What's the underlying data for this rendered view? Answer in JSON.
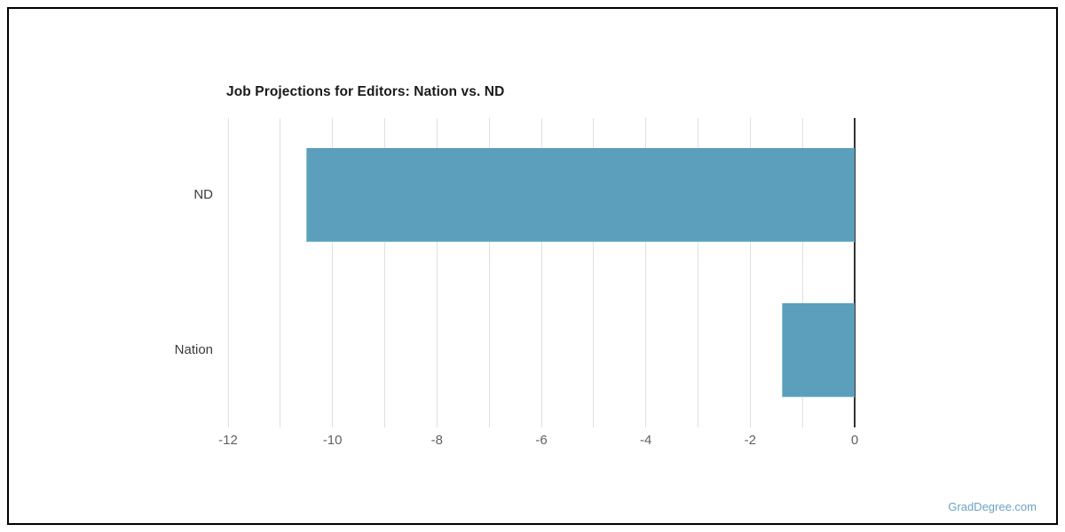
{
  "page": {
    "watermark": "GradDegree.com"
  },
  "colors": {
    "bar": "#5b9fbc",
    "bar_edge": "#8fc0d6",
    "gridline": "#e0e0e0",
    "zero_line": "#333333",
    "tick_label": "#616161",
    "category_label": "#3c3c3c",
    "title": "#1a1a1a",
    "frame_border": "#000000",
    "watermark": "#6aa3c2"
  },
  "chart_data": {
    "type": "bar",
    "orientation": "horizontal",
    "title": "Job Projections for Editors: Nation vs. ND",
    "categories": [
      "ND",
      "Nation"
    ],
    "values": [
      -10.5,
      -1.4
    ],
    "xlabel": "",
    "ylabel": "",
    "xlim": [
      -12,
      0
    ],
    "x_ticks": [
      -12,
      -10,
      -8,
      -6,
      -4,
      -2,
      0
    ],
    "gridline_step": 1,
    "grid": true,
    "legend": false,
    "bar_band_fraction": 0.61
  }
}
